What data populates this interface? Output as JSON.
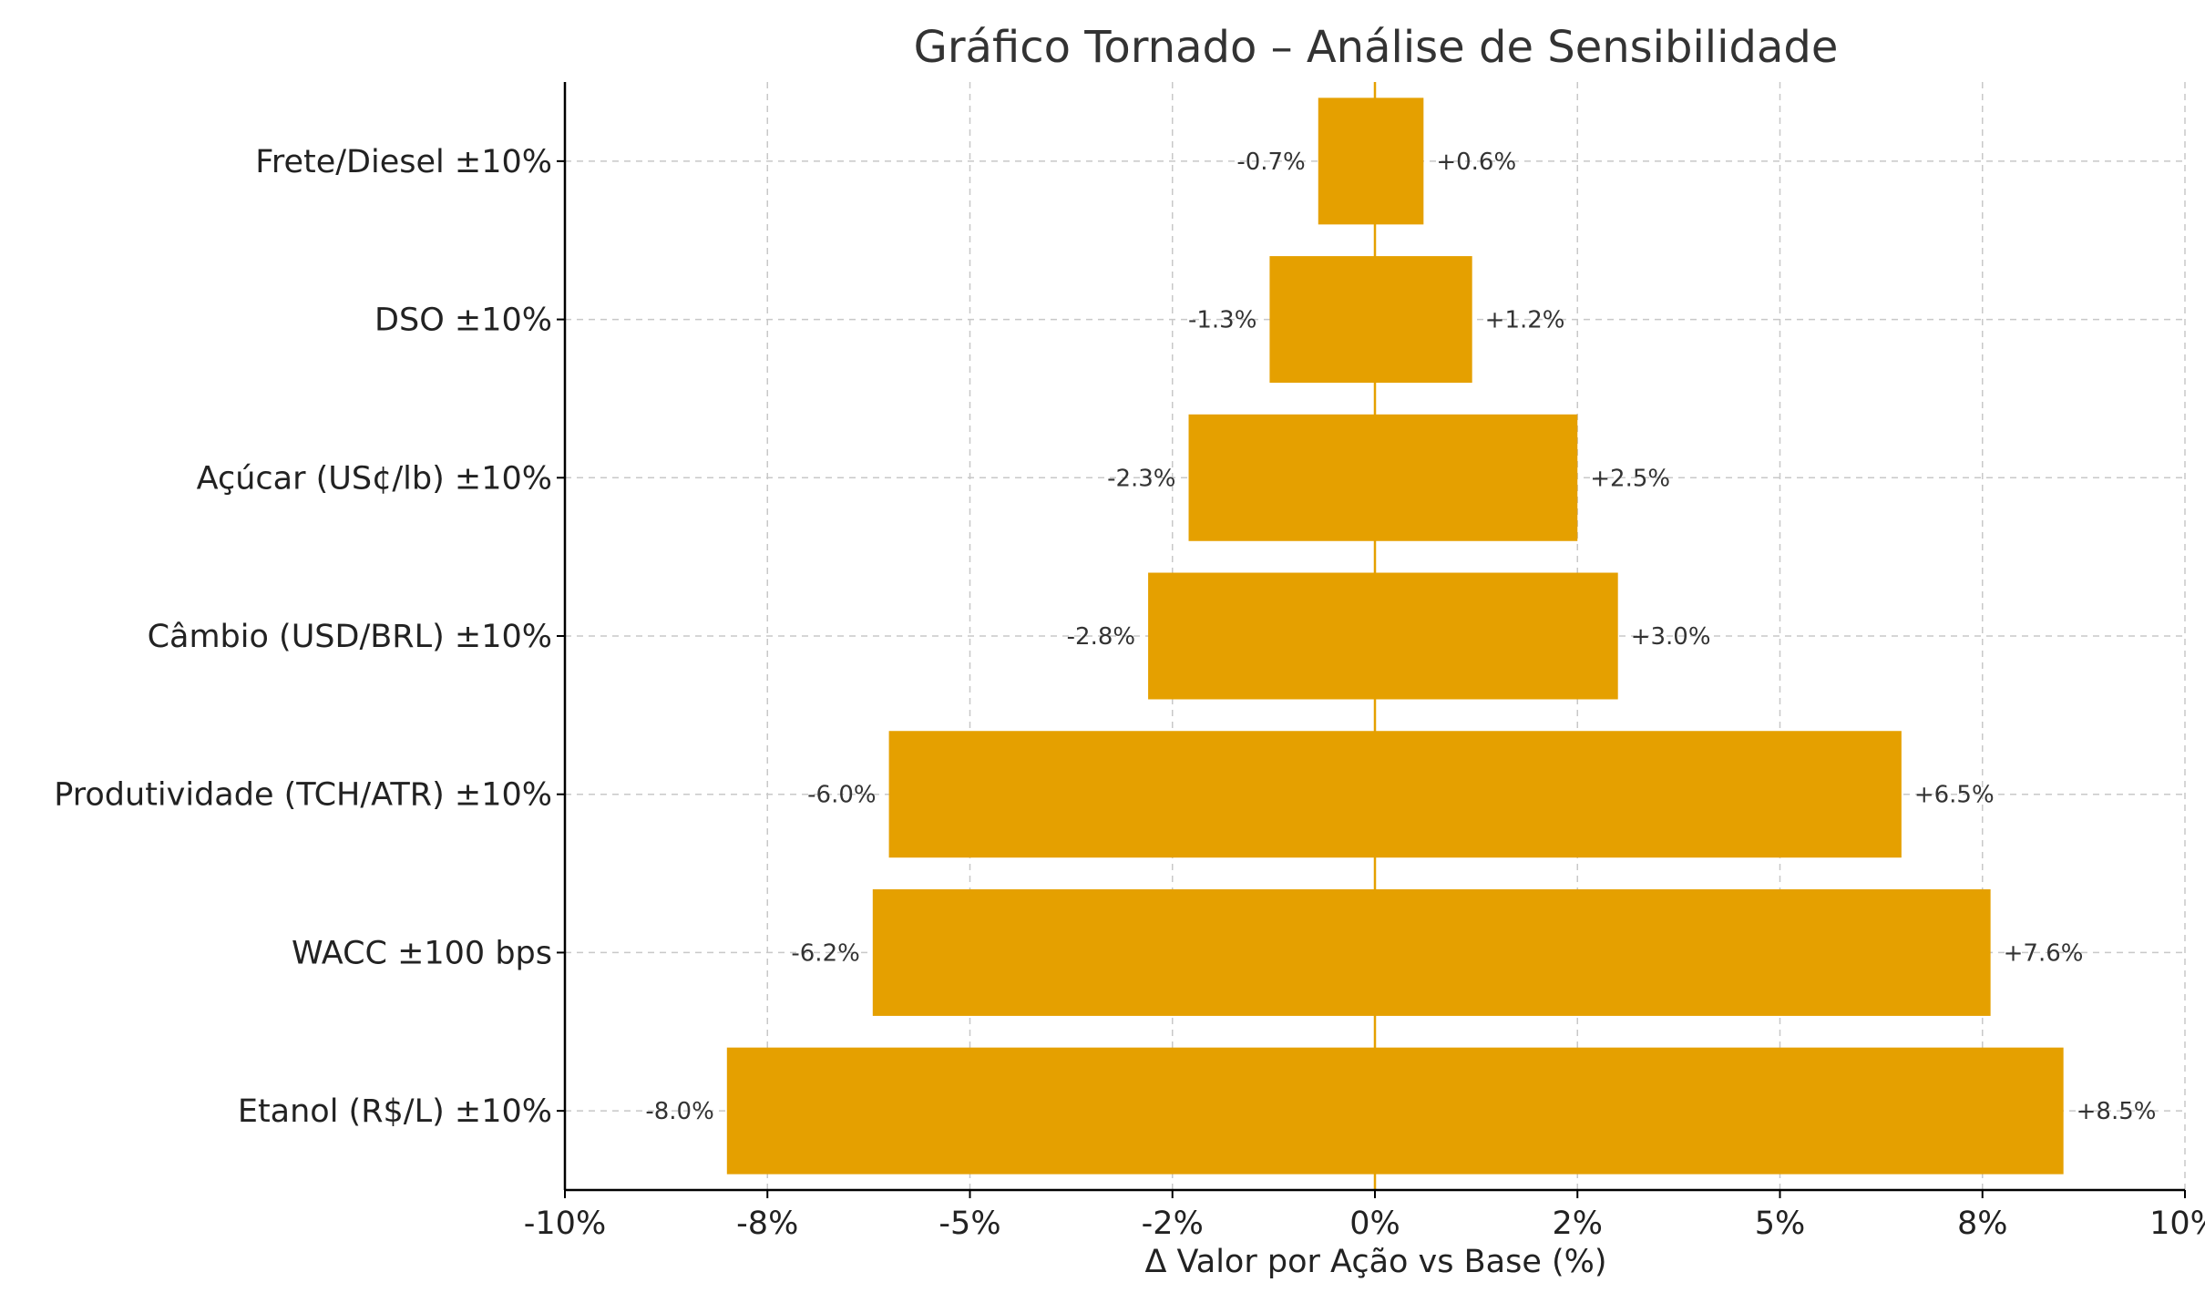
{
  "chart_data": {
    "type": "bar",
    "orientation": "horizontal",
    "variant": "tornado",
    "title": "Gráfico Tornado – Análise de Sensibilidade",
    "xlabel": "Δ Valor por Ação vs Base (%)",
    "ylabel": "",
    "xlim": [
      -10,
      10
    ],
    "x_ticks": [
      -10,
      -7.5,
      -5,
      -2.5,
      0,
      2.5,
      5,
      7.5,
      10
    ],
    "x_tick_labels": [
      "-10%",
      "-8%",
      "-5%",
      "-2%",
      "0%",
      "2%",
      "5%",
      "8%",
      "10%"
    ],
    "grid": true,
    "categories": [
      "Frete/Diesel ±10%",
      "DSO ±10%",
      "Açúcar (US¢/lb) ±10%",
      "Câmbio (USD/BRL) ±10%",
      "Produtividade (TCH/ATR) ±10%",
      "WACC ±100 bps",
      "Etanol (R$/L) ±10%"
    ],
    "series": [
      {
        "name": "",
        "values": [
          -0.7,
          -1.3,
          -2.3,
          -2.8,
          -6.0,
          -6.2,
          -8.0
        ],
        "labels": [
          "-0.7%",
          "-1.3%",
          "-2.3%",
          "-2.8%",
          "-6.0%",
          "-6.2%",
          "-8.0%"
        ]
      },
      {
        "name": "",
        "values": [
          0.6,
          1.2,
          2.5,
          3.0,
          6.5,
          7.6,
          8.5
        ],
        "labels": [
          "+0.6%",
          "+1.2%",
          "+2.5%",
          "+3.0%",
          "+6.5%",
          "+7.6%",
          "+8.5%"
        ]
      }
    ],
    "colors": {
      "bar": "#e5a000",
      "zero_line": "#e5a000",
      "axis": "#000000",
      "grid": "#c8c8c8"
    }
  }
}
